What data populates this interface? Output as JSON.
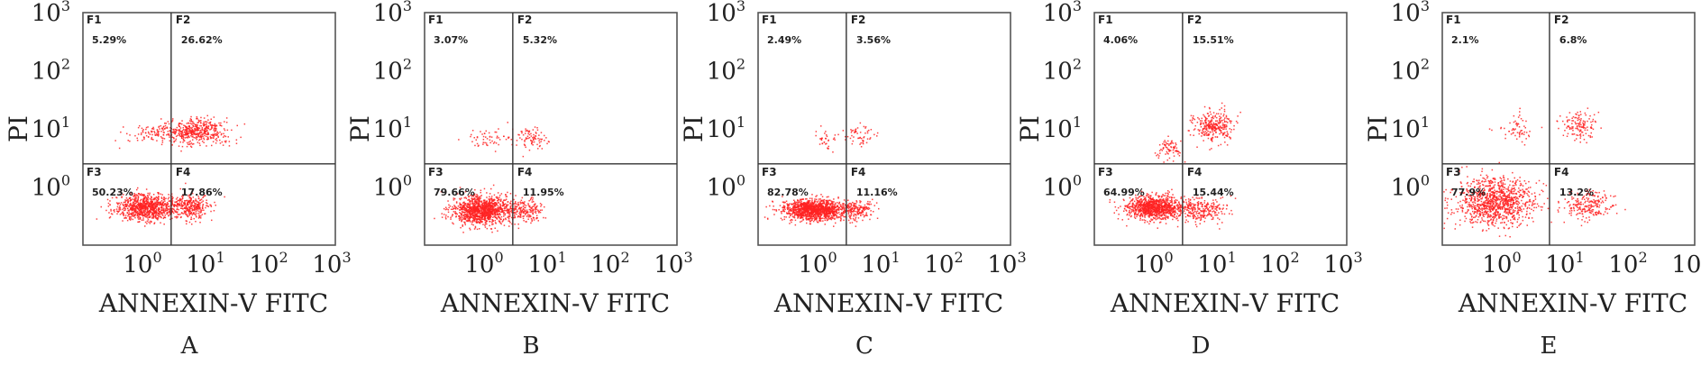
{
  "figure": {
    "colors": {
      "dots": "#ff2222",
      "frame": "#555555",
      "gate": "#333333",
      "text": "#222222"
    },
    "tick_base": "10",
    "x_tick_exponents": [
      "0",
      "1",
      "2",
      "3"
    ],
    "y_tick_exponents": [
      "0",
      "1",
      "2",
      "3"
    ],
    "xlabel": "ANNEXIN-Ⅴ FITC",
    "ylabel": "PI"
  },
  "chart_data": [
    {
      "type": "scatter",
      "panel": "A",
      "xlabel": "ANNEXIN-Ⅴ FITC",
      "ylabel": "PI",
      "xscale": "log",
      "yscale": "log",
      "xlim": [
        0.1,
        1000
      ],
      "ylim": [
        0.1,
        1000
      ],
      "gate": {
        "x": 2.5,
        "y": 2.5
      },
      "quadrants": [
        {
          "name": "F1",
          "percent": "5.29%"
        },
        {
          "name": "F2",
          "percent": "26.62%"
        },
        {
          "name": "F3",
          "percent": "50.23%"
        },
        {
          "name": "F4",
          "percent": "17.86%"
        }
      ],
      "clusters": [
        {
          "cx": 1.0,
          "cy": 0.45,
          "sx": 0.24,
          "sy": 0.11,
          "n": 900
        },
        {
          "cx": 5.0,
          "cy": 0.45,
          "sx": 0.16,
          "sy": 0.11,
          "n": 320
        },
        {
          "cx": 6.0,
          "cy": 9.0,
          "sx": 0.25,
          "sy": 0.11,
          "n": 480
        },
        {
          "cx": 1.3,
          "cy": 8.0,
          "sx": 0.22,
          "sy": 0.1,
          "n": 90
        }
      ]
    },
    {
      "type": "scatter",
      "panel": "B",
      "xlabel": "ANNEXIN-Ⅴ FITC",
      "ylabel": "PI",
      "xscale": "log",
      "yscale": "log",
      "xlim": [
        0.1,
        1000
      ],
      "ylim": [
        0.1,
        1000
      ],
      "gate": {
        "x": 2.5,
        "y": 2.5
      },
      "quadrants": [
        {
          "name": "F1",
          "percent": "3.07%"
        },
        {
          "name": "F2",
          "percent": "5.32%"
        },
        {
          "name": "F3",
          "percent": "79.66%"
        },
        {
          "name": "F4",
          "percent": "11.95%"
        }
      ],
      "clusters": [
        {
          "cx": 0.8,
          "cy": 0.4,
          "sx": 0.23,
          "sy": 0.12,
          "n": 1200
        },
        {
          "cx": 4.0,
          "cy": 0.4,
          "sx": 0.14,
          "sy": 0.1,
          "n": 180
        },
        {
          "cx": 5.0,
          "cy": 7.0,
          "sx": 0.18,
          "sy": 0.09,
          "n": 90
        },
        {
          "cx": 1.0,
          "cy": 6.5,
          "sx": 0.15,
          "sy": 0.08,
          "n": 50
        }
      ]
    },
    {
      "type": "scatter",
      "panel": "C",
      "xlabel": "ANNEXIN-Ⅴ FITC",
      "ylabel": "PI",
      "xscale": "log",
      "yscale": "log",
      "xlim": [
        0.1,
        1000
      ],
      "ylim": [
        0.1,
        1000
      ],
      "gate": {
        "x": 2.5,
        "y": 2.5
      },
      "quadrants": [
        {
          "name": "F1",
          "percent": "2.49%"
        },
        {
          "name": "F2",
          "percent": "3.56%"
        },
        {
          "name": "F3",
          "percent": "82.78%"
        },
        {
          "name": "F4",
          "percent": "11.16%"
        }
      ],
      "clusters": [
        {
          "cx": 0.8,
          "cy": 0.4,
          "sx": 0.25,
          "sy": 0.09,
          "n": 1300
        },
        {
          "cx": 3.8,
          "cy": 0.4,
          "sx": 0.13,
          "sy": 0.08,
          "n": 170
        },
        {
          "cx": 4.0,
          "cy": 8.0,
          "sx": 0.13,
          "sy": 0.1,
          "n": 55
        },
        {
          "cx": 1.2,
          "cy": 6.5,
          "sx": 0.1,
          "sy": 0.08,
          "n": 35
        }
      ]
    },
    {
      "type": "scatter",
      "panel": "D",
      "xlabel": "ANNEXIN-Ⅴ FITC",
      "ylabel": "PI",
      "xscale": "log",
      "yscale": "log",
      "xlim": [
        0.1,
        1000
      ],
      "ylim": [
        0.1,
        1000
      ],
      "gate": {
        "x": 2.5,
        "y": 2.5
      },
      "quadrants": [
        {
          "name": "F1",
          "percent": "4.06%"
        },
        {
          "name": "F2",
          "percent": "15.51%"
        },
        {
          "name": "F3",
          "percent": "64.99%"
        },
        {
          "name": "F4",
          "percent": "15.44%"
        }
      ],
      "clusters": [
        {
          "cx": 0.9,
          "cy": 0.45,
          "sx": 0.22,
          "sy": 0.1,
          "n": 1000
        },
        {
          "cx": 5.0,
          "cy": 0.4,
          "sx": 0.2,
          "sy": 0.1,
          "n": 260
        },
        {
          "cx": 8.0,
          "cy": 11.0,
          "sx": 0.16,
          "sy": 0.14,
          "n": 300
        },
        {
          "cx": 1.6,
          "cy": 4.5,
          "sx": 0.12,
          "sy": 0.1,
          "n": 80
        }
      ]
    },
    {
      "type": "scatter",
      "panel": "E",
      "xlabel": "ANNEXIN-Ⅴ FITC",
      "ylabel": "PI",
      "xscale": "log",
      "yscale": "log",
      "xlim": [
        0.1,
        1000
      ],
      "ylim": [
        0.1,
        1000
      ],
      "gate": {
        "x": 5.0,
        "y": 2.5
      },
      "quadrants": [
        {
          "name": "F1",
          "percent": "2.1%"
        },
        {
          "name": "F2",
          "percent": "6.8%"
        },
        {
          "name": "F3",
          "percent": "77.9%"
        },
        {
          "name": "F4",
          "percent": "13.2%"
        }
      ],
      "clusters": [
        {
          "cx": 0.7,
          "cy": 0.55,
          "sx": 0.32,
          "sy": 0.2,
          "n": 1050
        },
        {
          "cx": 20.0,
          "cy": 0.5,
          "sx": 0.2,
          "sy": 0.12,
          "n": 220
        },
        {
          "cx": 15.0,
          "cy": 11.0,
          "sx": 0.14,
          "sy": 0.12,
          "n": 130
        },
        {
          "cx": 1.5,
          "cy": 11.0,
          "sx": 0.16,
          "sy": 0.12,
          "n": 60
        }
      ]
    }
  ]
}
